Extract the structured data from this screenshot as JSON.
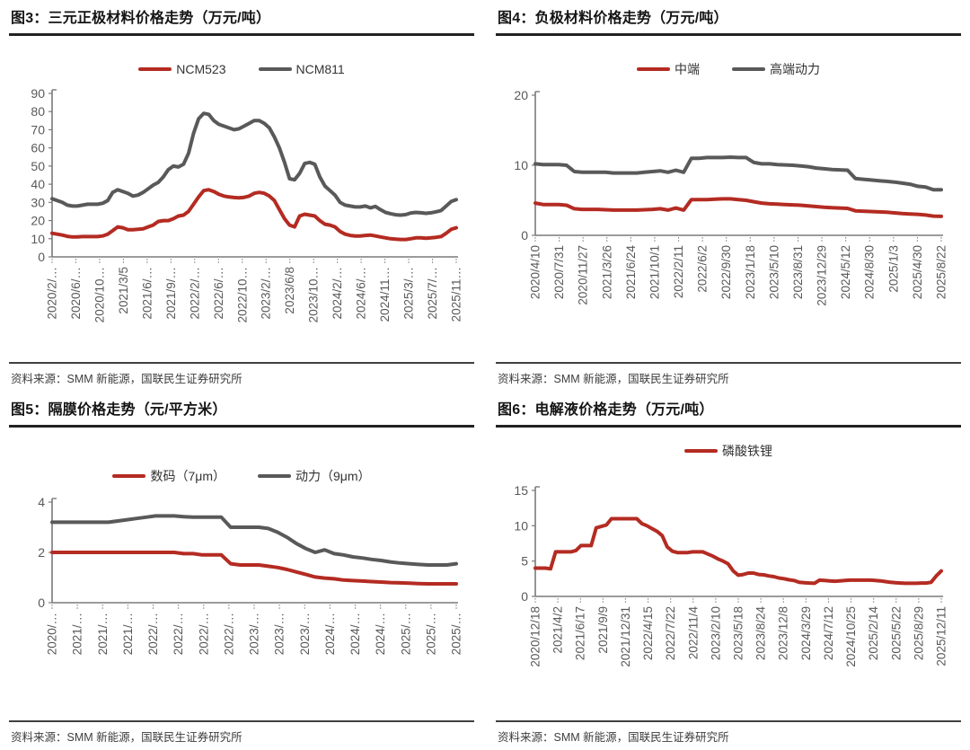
{
  "colors": {
    "red": "#b42b22",
    "gray": "#595959",
    "axis": "#7a7a7a",
    "tick_label": "#595959",
    "title_text": "#141414",
    "source_text": "#3d3d3d"
  },
  "panels": [
    {
      "title": "图3：三元正极材料价格走势（万元/吨）",
      "source": "资料来源：SMM 新能源，国联民生证券研究所"
    },
    {
      "title": "图4：负极材料价格走势（万元/吨）",
      "source": "资料来源：SMM 新能源，国联民生证券研究所"
    },
    {
      "title": "图5：隔膜价格走势（元/平方米）",
      "source": "资料来源：SMM 新能源，国联民生证券研究所"
    },
    {
      "title": "图6：电解液价格走势（万元/吨）",
      "source": "资料来源：SMM 新能源，国联民生证券研究所"
    }
  ],
  "chart_data": [
    {
      "type": "line",
      "title": "三元正极材料价格走势",
      "y_unit": "万元/吨",
      "ylim": [
        0,
        90
      ],
      "yticks": [
        0,
        10,
        20,
        30,
        40,
        50,
        60,
        70,
        80,
        90
      ],
      "grid": false,
      "legend_position": "top",
      "x_tick_labels": [
        "2020/2/…",
        "2020/6/…",
        "2020/10…",
        "2021/3/5",
        "2021/6/…",
        "2021/9/…",
        "2022/2/…",
        "2022/6/…",
        "2022/10…",
        "2023/2/…",
        "2023/6/8",
        "2023/10…",
        "2024/2/…",
        "2024/6/…",
        "2024/11…",
        "2025/3/…",
        "2025/7/…",
        "2025/11…"
      ],
      "series": [
        {
          "name": "NCM523",
          "color": "#b42b22",
          "values": [
            13,
            12.5,
            12,
            11.3,
            11,
            11,
            11.2,
            11.2,
            11.2,
            11.2,
            11.5,
            12.5,
            14.5,
            16.5,
            16,
            15,
            15,
            15.2,
            15.5,
            16.5,
            17.5,
            19.5,
            20,
            20,
            21,
            22.5,
            23,
            25,
            29,
            33,
            36.5,
            37,
            36,
            34.5,
            33.5,
            33,
            32.7,
            32.5,
            32.8,
            33.5,
            35,
            35.5,
            35,
            33.5,
            31,
            26,
            21,
            17.5,
            16.5,
            22.5,
            23.5,
            23,
            22.5,
            20,
            18,
            17.5,
            16.5,
            14,
            12.5,
            11.8,
            11.5,
            11.5,
            11.8,
            12,
            11.5,
            11,
            10.5,
            10,
            9.8,
            9.6,
            9.6,
            10,
            10.5,
            10.5,
            10.3,
            10.5,
            10.8,
            11.2,
            13,
            15.2,
            16
          ]
        },
        {
          "name": "NCM811",
          "color": "#595959",
          "values": [
            32,
            31,
            30,
            28.5,
            28,
            28,
            28.5,
            29,
            29,
            29,
            29.5,
            31,
            35.5,
            37,
            36,
            35,
            33.5,
            34,
            35.5,
            37.5,
            39.5,
            41,
            44,
            48,
            50,
            49.5,
            51,
            57,
            68,
            76,
            79,
            78.5,
            75,
            73,
            72,
            71,
            70,
            70.5,
            72,
            73.5,
            75,
            75,
            73.5,
            71,
            66,
            60,
            52,
            43,
            42.5,
            46,
            51.5,
            52,
            51,
            44,
            39,
            36.5,
            34,
            30,
            28.5,
            28,
            27.5,
            27.5,
            28,
            27,
            27.8,
            26,
            24.5,
            23.8,
            23.2,
            23,
            23.3,
            24.2,
            24.5,
            24.3,
            24,
            24.3,
            24.8,
            25.5,
            28,
            30.5,
            31.5
          ]
        }
      ]
    },
    {
      "type": "line",
      "title": "负极材料价格走势",
      "y_unit": "万元/吨",
      "ylim": [
        0,
        20
      ],
      "yticks": [
        0,
        10,
        20
      ],
      "grid": false,
      "legend_position": "top",
      "x_tick_labels": [
        "2020/4/10",
        "2020/7/31",
        "2020/11/27",
        "2021/3/26",
        "2021/6/24",
        "2021/10/1",
        "2022/2/11",
        "2022/6/2",
        "2022/9/30",
        "2023/1/18",
        "2023/5/10",
        "2023/8/31",
        "2023/12/29",
        "2024/5/12",
        "2024/8/30",
        "2025/1/3",
        "2025/4/30",
        "2025/8/22"
      ],
      "series": [
        {
          "name": "中端",
          "color": "#b42b22",
          "values": [
            4.6,
            4.4,
            4.4,
            4.4,
            4.3,
            3.8,
            3.7,
            3.7,
            3.7,
            3.65,
            3.6,
            3.6,
            3.6,
            3.6,
            3.65,
            3.7,
            3.8,
            3.6,
            3.9,
            3.6,
            5.1,
            5.1,
            5.1,
            5.15,
            5.2,
            5.2,
            5.1,
            5,
            4.8,
            4.6,
            4.5,
            4.45,
            4.4,
            4.35,
            4.3,
            4.2,
            4.1,
            4,
            3.95,
            3.9,
            3.85,
            3.5,
            3.45,
            3.4,
            3.35,
            3.3,
            3.2,
            3.1,
            3.05,
            3,
            2.9,
            2.75,
            2.7
          ]
        },
        {
          "name": "高端动力",
          "color": "#595959",
          "values": [
            10.2,
            10.1,
            10.1,
            10.1,
            10,
            9.1,
            9,
            9,
            9,
            9,
            8.9,
            8.9,
            8.9,
            8.9,
            9,
            9.1,
            9.2,
            9,
            9.3,
            9,
            11,
            11,
            11.1,
            11.1,
            11.1,
            11.15,
            11.1,
            11.1,
            10.4,
            10.2,
            10.2,
            10.1,
            10.05,
            10,
            9.9,
            9.8,
            9.6,
            9.5,
            9.4,
            9.35,
            9.3,
            8.1,
            8,
            7.9,
            7.8,
            7.7,
            7.6,
            7.45,
            7.3,
            7,
            6.9,
            6.5,
            6.5
          ]
        }
      ]
    },
    {
      "type": "line",
      "title": "隔膜价格走势",
      "y_unit": "元/平方米",
      "ylim": [
        0,
        4
      ],
      "yticks": [
        0,
        2,
        4
      ],
      "grid": false,
      "legend_position": "top",
      "x_tick_labels": [
        "2020/…",
        "2021/…",
        "2021/…",
        "2021/…",
        "2022/…",
        "2022/…",
        "2022/…",
        "2022/…",
        "2023/…",
        "2023/…",
        "2023/…",
        "2024/…",
        "2024/…",
        "2024/…",
        "2025/…",
        "2025/…",
        "2025/…"
      ],
      "series": [
        {
          "name": "数码（7μm）",
          "color": "#b42b22",
          "values": [
            2,
            2,
            2,
            2,
            2,
            2,
            2,
            2,
            2,
            2,
            2,
            2,
            2,
            2,
            1.95,
            1.95,
            1.9,
            1.9,
            1.9,
            1.55,
            1.5,
            1.5,
            1.5,
            1.45,
            1.4,
            1.32,
            1.22,
            1.12,
            1.02,
            0.98,
            0.95,
            0.9,
            0.88,
            0.86,
            0.84,
            0.82,
            0.8,
            0.79,
            0.78,
            0.76,
            0.75,
            0.75,
            0.75,
            0.75
          ]
        },
        {
          "name": "动力（9μm）",
          "color": "#595959",
          "values": [
            3.2,
            3.2,
            3.2,
            3.2,
            3.2,
            3.2,
            3.2,
            3.25,
            3.3,
            3.35,
            3.4,
            3.45,
            3.45,
            3.45,
            3.42,
            3.4,
            3.4,
            3.4,
            3.4,
            3,
            3,
            3,
            3,
            2.95,
            2.8,
            2.6,
            2.35,
            2.15,
            2,
            2.1,
            1.95,
            1.9,
            1.82,
            1.78,
            1.72,
            1.68,
            1.62,
            1.58,
            1.55,
            1.52,
            1.5,
            1.5,
            1.5,
            1.55
          ]
        }
      ]
    },
    {
      "type": "line",
      "title": "电解液价格走势",
      "y_unit": "万元/吨",
      "ylim": [
        0,
        15
      ],
      "yticks": [
        0,
        5,
        10,
        15
      ],
      "grid": false,
      "legend_position": "top",
      "x_tick_labels": [
        "2020/12/18",
        "2021/4/2",
        "2021/6/17",
        "2021/9/9",
        "2021/12/31",
        "2022/4/15",
        "2022/7/22",
        "2022/11/4",
        "2023/2/10",
        "2023/5/18",
        "2023/8/24",
        "2023/12/8",
        "2024/3/29",
        "2024/7/12",
        "2024/10/25",
        "2025/2/14",
        "2025/5/22",
        "2025/8/29",
        "2025/12/11"
      ],
      "series": [
        {
          "name": "磷酸铁锂",
          "color": "#b42b22",
          "values": [
            4,
            4,
            4,
            3.9,
            6.3,
            6.3,
            6.3,
            6.3,
            6.5,
            7.2,
            7.2,
            7.2,
            9.7,
            9.9,
            10.1,
            11,
            11,
            11,
            11,
            11,
            11,
            10.3,
            10,
            9.6,
            9.2,
            8.6,
            7,
            6.4,
            6.2,
            6.2,
            6.2,
            6.3,
            6.3,
            6.3,
            6,
            5.7,
            5.3,
            5,
            4.6,
            3.6,
            3,
            3.1,
            3.3,
            3.3,
            3.1,
            3.05,
            2.9,
            2.8,
            2.6,
            2.5,
            2.35,
            2.25,
            2,
            1.95,
            1.9,
            1.85,
            2.3,
            2.25,
            2.2,
            2.15,
            2.2,
            2.25,
            2.3,
            2.3,
            2.3,
            2.3,
            2.3,
            2.25,
            2.2,
            2.1,
            2,
            1.95,
            1.9,
            1.85,
            1.85,
            1.85,
            1.9,
            1.9,
            2,
            2.9,
            3.6
          ]
        }
      ]
    }
  ]
}
